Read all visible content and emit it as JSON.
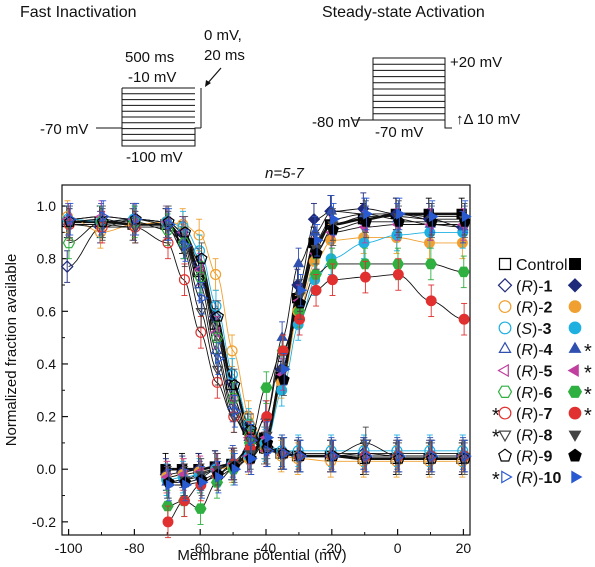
{
  "protocols": {
    "fast_inactivation": {
      "title": "Fast Inactivation",
      "step_label_1": "0 mV,",
      "step_label_2": "20 ms",
      "duration_label": "500 ms",
      "top_label": "-10 mV",
      "holding_label": "-70 mV",
      "bottom_label": "-100 mV"
    },
    "steady_state_activation": {
      "title": "Steady-state Activation",
      "holding_label": "-80 mV",
      "top_label": "+20 mV",
      "return_label": "-70 mV",
      "increment_label": "↑Δ 10 mV"
    }
  },
  "chart_data": {
    "type": "scatter",
    "annotation": "n=5-7",
    "xlabel": "Membrane potential (mV)",
    "ylabel": "Normalized fraction available",
    "xlim": [
      -102,
      22
    ],
    "ylim": [
      -0.25,
      1.08
    ],
    "x_ticks": [
      -100,
      -80,
      -60,
      -40,
      -20,
      0,
      20
    ],
    "x_tick_labels": [
      "-100",
      "-80",
      "-60",
      "-40",
      "-20",
      "0",
      "20"
    ],
    "y_ticks": [
      -0.2,
      0.0,
      0.2,
      0.4,
      0.6,
      0.8,
      1.0
    ],
    "y_tick_labels": [
      "-0.2",
      "0.0",
      "0.2",
      "0.4",
      "0.6",
      "0.8",
      "1.0"
    ],
    "grid": false,
    "legend_position": "right",
    "series": [
      {
        "name": "Control",
        "paren": "",
        "num": "",
        "open": "square",
        "filled": "square",
        "color": "#000000",
        "star_left": false,
        "star_right": false,
        "inact": {
          "x": [
            -100,
            -90,
            -80,
            -70,
            -65,
            -60,
            -55,
            -50,
            -45,
            -40,
            -35,
            -30,
            -20,
            -10,
            0,
            10,
            20
          ],
          "y": [
            0.94,
            0.94,
            0.93,
            0.93,
            0.88,
            0.75,
            0.55,
            0.32,
            0.15,
            0.08,
            0.06,
            0.05,
            0.05,
            0.04,
            0.04,
            0.04,
            0.04
          ]
        },
        "act": {
          "x": [
            -70,
            -65,
            -60,
            -55,
            -50,
            -45,
            -40,
            -35,
            -30,
            -25,
            -20,
            -10,
            0,
            10,
            20
          ],
          "y": [
            0.0,
            0.0,
            0.0,
            0.01,
            0.02,
            0.05,
            0.12,
            0.35,
            0.65,
            0.86,
            0.93,
            0.95,
            0.97,
            0.97,
            0.97
          ]
        }
      },
      {
        "name": "",
        "paren": "R",
        "num": "1",
        "open": "diamond",
        "filled": "diamond",
        "color": "#1f2a7a",
        "star_left": false,
        "star_right": false,
        "inact": {
          "x": [
            -100,
            -90,
            -80,
            -70,
            -65,
            -60,
            -55,
            -50,
            -45,
            -40,
            -35,
            -30,
            -20,
            -10,
            0,
            10,
            20
          ],
          "y": [
            0.77,
            0.92,
            0.95,
            0.94,
            0.9,
            0.78,
            0.58,
            0.33,
            0.16,
            0.1,
            0.06,
            0.05,
            0.05,
            0.06,
            0.05,
            0.05,
            0.05
          ]
        },
        "act": {
          "x": [
            -70,
            -65,
            -60,
            -55,
            -50,
            -45,
            -40,
            -35,
            -30,
            -25,
            -20,
            -10,
            0,
            10,
            20
          ],
          "y": [
            -0.02,
            -0.01,
            0.0,
            0.01,
            0.02,
            0.05,
            0.1,
            0.38,
            0.7,
            0.95,
            0.98,
            0.99,
            0.97,
            0.95,
            0.92
          ]
        }
      },
      {
        "name": "",
        "paren": "R",
        "num": "2",
        "open": "circle",
        "filled": "circle",
        "color": "#f0a030",
        "star_left": false,
        "star_right": false,
        "inact": {
          "x": [
            -100,
            -90,
            -80,
            -70,
            -65,
            -60,
            -55,
            -50,
            -45,
            -40,
            -35,
            -30,
            -20,
            -10,
            0,
            10,
            20
          ],
          "y": [
            0.96,
            0.9,
            0.93,
            0.94,
            0.93,
            0.89,
            0.74,
            0.45,
            0.2,
            0.08,
            0.05,
            0.04,
            0.03,
            0.03,
            0.03,
            0.03,
            0.03
          ]
        },
        "act": {
          "x": [
            -70,
            -65,
            -60,
            -55,
            -50,
            -45,
            -40,
            -35,
            -30,
            -25,
            -20,
            -10,
            0,
            10,
            20
          ],
          "y": [
            -0.03,
            -0.02,
            -0.01,
            0.0,
            0.01,
            0.04,
            0.1,
            0.33,
            0.6,
            0.79,
            0.87,
            0.88,
            0.88,
            0.86,
            0.86
          ]
        }
      },
      {
        "name": "",
        "paren": "S",
        "num": "3",
        "open": "circle",
        "filled": "circle",
        "color": "#1fb0e0",
        "star_left": false,
        "star_right": false,
        "inact": {
          "x": [
            -100,
            -90,
            -80,
            -70,
            -65,
            -60,
            -55,
            -50,
            -45,
            -40,
            -35,
            -30,
            -20,
            -10,
            0,
            10,
            20
          ],
          "y": [
            0.95,
            0.94,
            0.95,
            0.94,
            0.92,
            0.83,
            0.62,
            0.36,
            0.17,
            0.09,
            0.07,
            0.07,
            0.07,
            0.07,
            0.07,
            0.07,
            0.07
          ]
        },
        "act": {
          "x": [
            -70,
            -65,
            -60,
            -55,
            -50,
            -45,
            -40,
            -35,
            -30,
            -25,
            -20,
            -10,
            0,
            10,
            20
          ],
          "y": [
            -0.04,
            -0.03,
            -0.02,
            0.0,
            0.02,
            0.05,
            0.1,
            0.3,
            0.55,
            0.72,
            0.8,
            0.86,
            0.89,
            0.9,
            0.9
          ]
        }
      },
      {
        "name": "",
        "paren": "R",
        "num": "4",
        "open": "triangle-up",
        "filled": "triangle-up",
        "color": "#3050b0",
        "star_left": false,
        "star_right": true,
        "inact": {
          "x": [
            -100,
            -90,
            -80,
            -70,
            -65,
            -60,
            -55,
            -50,
            -45,
            -40,
            -35,
            -30,
            -20,
            -10,
            0,
            10,
            20
          ],
          "y": [
            0.94,
            0.95,
            0.93,
            0.93,
            0.86,
            0.7,
            0.45,
            0.24,
            0.12,
            0.08,
            0.07,
            0.06,
            0.06,
            0.06,
            0.06,
            0.06,
            0.06
          ]
        },
        "act": {
          "x": [
            -70,
            -65,
            -60,
            -55,
            -50,
            -45,
            -40,
            -35,
            -30,
            -25,
            -20,
            -10,
            0,
            10,
            20
          ],
          "y": [
            -0.05,
            -0.04,
            -0.03,
            0.0,
            0.03,
            0.08,
            0.2,
            0.5,
            0.78,
            0.9,
            0.98,
            0.97,
            0.95,
            0.93,
            0.92
          ]
        }
      },
      {
        "name": "",
        "paren": "R",
        "num": "5",
        "open": "triangle-left",
        "filled": "triangle-left",
        "color": "#c040a0",
        "star_left": false,
        "star_right": true,
        "inact": {
          "x": [
            -100,
            -90,
            -80,
            -70,
            -65,
            -60,
            -55,
            -50,
            -45,
            -40,
            -35,
            -30,
            -20,
            -10,
            0,
            10,
            20
          ],
          "y": [
            0.95,
            0.96,
            0.95,
            0.94,
            0.9,
            0.76,
            0.52,
            0.27,
            0.12,
            0.07,
            0.06,
            0.05,
            0.05,
            0.05,
            0.05,
            0.05,
            0.05
          ]
        },
        "act": {
          "x": [
            -70,
            -65,
            -60,
            -55,
            -50,
            -45,
            -40,
            -35,
            -30,
            -25,
            -20,
            -10,
            0,
            10,
            20
          ],
          "y": [
            -0.03,
            -0.02,
            -0.01,
            0.0,
            0.02,
            0.05,
            0.12,
            0.36,
            0.64,
            0.82,
            0.9,
            0.92,
            0.93,
            0.93,
            0.93
          ]
        }
      },
      {
        "name": "",
        "paren": "R",
        "num": "6",
        "open": "hexagon",
        "filled": "hexagon",
        "color": "#2fb040",
        "star_left": false,
        "star_right": true,
        "inact": {
          "x": [
            -100,
            -90,
            -80,
            -70,
            -65,
            -60,
            -55,
            -50,
            -45,
            -40,
            -35,
            -30,
            -20,
            -10,
            0,
            10,
            20
          ],
          "y": [
            0.86,
            0.94,
            0.94,
            0.91,
            0.86,
            0.73,
            0.5,
            0.27,
            0.13,
            0.08,
            0.06,
            0.05,
            0.05,
            0.05,
            0.05,
            0.05,
            0.05
          ]
        },
        "act": {
          "x": [
            -70,
            -65,
            -60,
            -55,
            -50,
            -45,
            -40,
            -35,
            -30,
            -25,
            -20,
            -10,
            0,
            10,
            20
          ],
          "y": [
            -0.14,
            -0.12,
            -0.15,
            -0.05,
            0.0,
            0.1,
            0.31,
            0.45,
            0.6,
            0.74,
            0.78,
            0.78,
            0.78,
            0.78,
            0.75
          ]
        }
      },
      {
        "name": "",
        "paren": "R",
        "num": "7",
        "open": "circle",
        "filled": "circle",
        "color": "#e03030",
        "star_left": true,
        "star_right": true,
        "inact": {
          "x": [
            -100,
            -90,
            -80,
            -70,
            -65,
            -60,
            -55,
            -50,
            -45,
            -40,
            -35,
            -30,
            -20,
            -10,
            0,
            10,
            20
          ],
          "y": [
            0.93,
            0.92,
            0.92,
            0.86,
            0.72,
            0.52,
            0.33,
            0.2,
            0.12,
            0.08,
            0.06,
            0.05,
            0.05,
            0.05,
            0.05,
            0.05,
            0.05
          ]
        },
        "act": {
          "x": [
            -70,
            -65,
            -60,
            -55,
            -50,
            -45,
            -40,
            -35,
            -30,
            -25,
            -20,
            -10,
            0,
            10,
            20
          ],
          "y": [
            -0.2,
            -0.12,
            -0.06,
            -0.02,
            0.02,
            0.08,
            0.2,
            0.45,
            0.57,
            0.68,
            0.72,
            0.73,
            0.74,
            0.64,
            0.57
          ]
        }
      },
      {
        "name": "",
        "paren": "R",
        "num": "8",
        "open": "triangle-down",
        "filled": "triangle-down",
        "color": "#444444",
        "star_left": true,
        "star_right": false,
        "inact": {
          "x": [
            -100,
            -90,
            -80,
            -70,
            -65,
            -60,
            -55,
            -50,
            -45,
            -40,
            -35,
            -30,
            -20,
            -10,
            0,
            10,
            20
          ],
          "y": [
            0.93,
            0.93,
            0.92,
            0.92,
            0.83,
            0.6,
            0.38,
            0.2,
            0.11,
            0.07,
            0.06,
            0.05,
            0.05,
            0.1,
            0.05,
            0.05,
            0.05
          ]
        },
        "act": {
          "x": [
            -70,
            -65,
            -60,
            -55,
            -50,
            -45,
            -40,
            -35,
            -30,
            -25,
            -20,
            -10,
            0,
            10,
            20
          ],
          "y": [
            -0.05,
            -0.04,
            -0.02,
            0.0,
            0.02,
            0.06,
            0.13,
            0.38,
            0.66,
            0.84,
            0.93,
            0.96,
            0.96,
            0.95,
            0.95
          ]
        }
      },
      {
        "name": "",
        "paren": "R",
        "num": "9",
        "open": "pentagon",
        "filled": "pentagon",
        "color": "#000000",
        "star_left": false,
        "star_right": false,
        "inact": {
          "x": [
            -100,
            -90,
            -80,
            -70,
            -65,
            -60,
            -55,
            -50,
            -45,
            -40,
            -35,
            -30,
            -20,
            -10,
            0,
            10,
            20
          ],
          "y": [
            0.94,
            0.94,
            0.95,
            0.94,
            0.9,
            0.8,
            0.58,
            0.32,
            0.15,
            0.08,
            0.06,
            0.05,
            0.05,
            0.04,
            0.04,
            0.04,
            0.04
          ]
        },
        "act": {
          "x": [
            -70,
            -65,
            -60,
            -55,
            -50,
            -45,
            -40,
            -35,
            -30,
            -25,
            -20,
            -10,
            0,
            10,
            20
          ],
          "y": [
            -0.05,
            -0.05,
            -0.04,
            -0.02,
            0.01,
            0.04,
            0.1,
            0.34,
            0.63,
            0.82,
            0.91,
            0.94,
            0.94,
            0.94,
            0.94
          ]
        }
      },
      {
        "name": "",
        "paren": "R",
        "num": "10",
        "open": "triangle-right",
        "filled": "triangle-right",
        "color": "#2a5ad0",
        "star_left": true,
        "star_right": false,
        "inact": {
          "x": [
            -100,
            -90,
            -80,
            -70,
            -65,
            -60,
            -55,
            -50,
            -45,
            -40,
            -35,
            -30,
            -20,
            -10,
            0,
            10,
            20
          ],
          "y": [
            0.95,
            0.96,
            0.95,
            0.93,
            0.85,
            0.65,
            0.42,
            0.22,
            0.11,
            0.07,
            0.06,
            0.05,
            0.05,
            0.05,
            0.05,
            0.05,
            0.05
          ]
        },
        "act": {
          "x": [
            -70,
            -65,
            -60,
            -55,
            -50,
            -45,
            -40,
            -35,
            -30,
            -25,
            -20,
            -10,
            0,
            10,
            20
          ],
          "y": [
            -0.06,
            -0.06,
            -0.05,
            -0.03,
            0.0,
            0.04,
            0.12,
            0.38,
            0.68,
            0.87,
            0.95,
            0.97,
            0.97,
            0.96,
            0.96
          ]
        }
      }
    ]
  }
}
